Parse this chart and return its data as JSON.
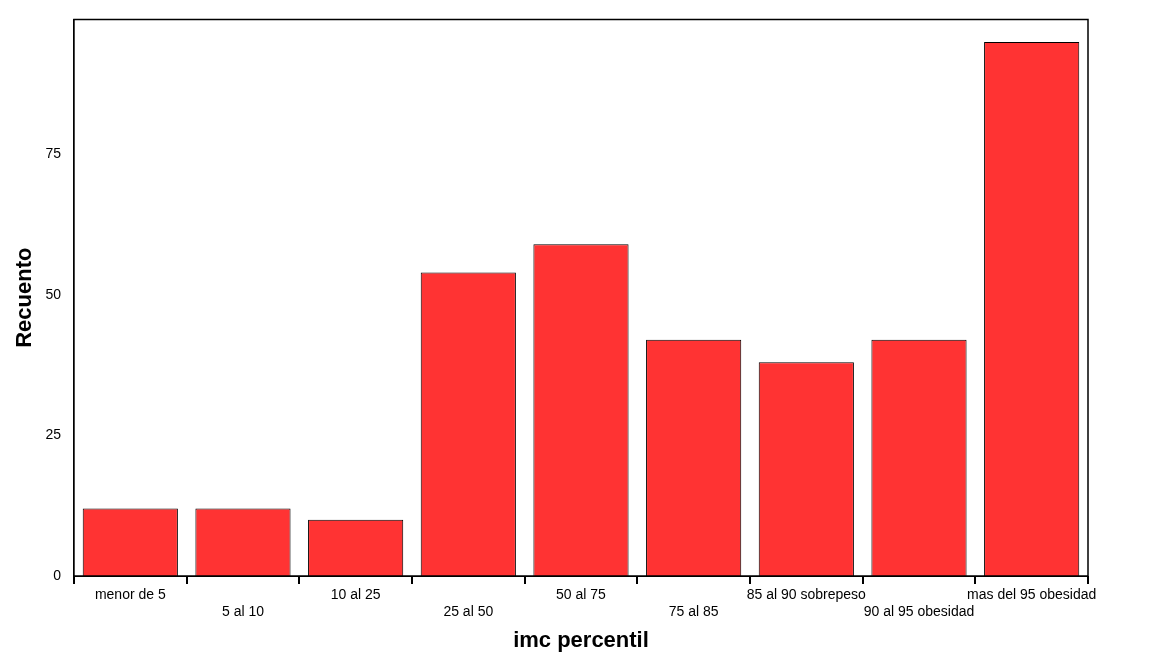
{
  "chart_data": {
    "type": "bar",
    "xlabel": "imc percentil",
    "ylabel": "Recuento",
    "categories": [
      "menor de 5",
      "5 al 10",
      "10 al 25",
      "25 al 50",
      "50 al 75",
      "75 al 85",
      "85 al 90 sobrepeso",
      "90 al 95 obesidad",
      "mas del 95 obesidad"
    ],
    "values": [
      12,
      12,
      10,
      54,
      59,
      42,
      38,
      42,
      95
    ],
    "color": "#ff3333",
    "ylim": [
      0,
      99
    ],
    "yticks": [
      0,
      25,
      50,
      75
    ],
    "grid": false,
    "legend": false
  }
}
